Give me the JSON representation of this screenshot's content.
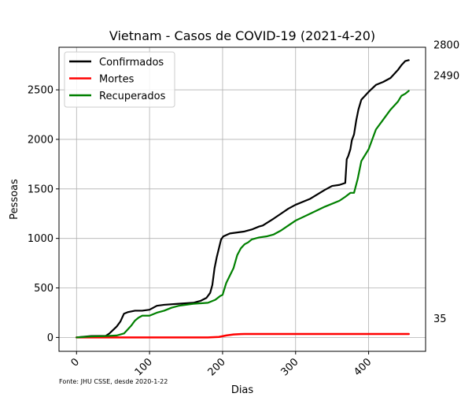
{
  "chart_data": {
    "type": "line",
    "title": "Vietnam - Casos de COVID-19 (2021-4-20)",
    "xlabel": "Dias",
    "ylabel": "Pessoas",
    "xlim": [
      -24,
      478
    ],
    "ylim": [
      -140,
      2930
    ],
    "xticks": [
      0,
      100,
      200,
      300,
      400
    ],
    "yticks": [
      0,
      500,
      1000,
      1500,
      2000,
      2500
    ],
    "grid": true,
    "legend": "top-left",
    "source_note": "Fonte: JHU CSSE, desde 2020-1-22",
    "series": [
      {
        "name": "Confirmados",
        "color": "#000000",
        "end_label": "2800",
        "x": [
          0,
          20,
          40,
          45,
          50,
          55,
          60,
          65,
          70,
          80,
          90,
          100,
          110,
          120,
          140,
          160,
          170,
          178,
          183,
          186,
          189,
          192,
          195,
          198,
          201,
          204,
          207,
          210,
          215,
          220,
          230,
          240,
          250,
          255,
          270,
          280,
          290,
          300,
          320,
          340,
          350,
          360,
          368,
          370,
          372,
          375,
          377,
          380,
          383,
          386,
          390,
          395,
          400,
          410,
          420,
          430,
          440,
          445,
          450,
          455
        ],
        "y": [
          0,
          14,
          16,
          40,
          75,
          110,
          160,
          240,
          255,
          270,
          270,
          280,
          320,
          330,
          340,
          350,
          370,
          400,
          450,
          530,
          700,
          810,
          900,
          990,
          1020,
          1030,
          1040,
          1050,
          1055,
          1060,
          1070,
          1090,
          1120,
          1130,
          1200,
          1250,
          1300,
          1340,
          1400,
          1490,
          1530,
          1540,
          1560,
          1800,
          1830,
          1900,
          1990,
          2050,
          2190,
          2300,
          2400,
          2440,
          2480,
          2550,
          2580,
          2620,
          2700,
          2750,
          2790,
          2800
        ]
      },
      {
        "name": "Mortes",
        "color": "#ff0000",
        "end_label": "35",
        "x": [
          0,
          180,
          195,
          205,
          210,
          215,
          220,
          225,
          230,
          300,
          400,
          455
        ],
        "y": [
          0,
          0,
          5,
          20,
          25,
          30,
          32,
          34,
          35,
          35,
          35,
          35
        ],
        "line_width": 2.5
      },
      {
        "name": "Recuperados",
        "color": "#008000",
        "end_label": "2490",
        "x": [
          0,
          20,
          40,
          55,
          65,
          70,
          75,
          80,
          85,
          90,
          100,
          110,
          120,
          130,
          140,
          160,
          180,
          190,
          197,
          200,
          205,
          215,
          220,
          225,
          230,
          235,
          240,
          250,
          260,
          270,
          280,
          290,
          300,
          320,
          340,
          360,
          368,
          375,
          380,
          385,
          390,
          400,
          410,
          420,
          430,
          440,
          445,
          450,
          455
        ],
        "y": [
          0,
          10,
          14,
          20,
          40,
          80,
          120,
          170,
          200,
          220,
          220,
          250,
          270,
          300,
          320,
          340,
          350,
          380,
          420,
          430,
          550,
          700,
          830,
          900,
          940,
          960,
          990,
          1010,
          1020,
          1040,
          1080,
          1130,
          1180,
          1250,
          1320,
          1380,
          1420,
          1460,
          1460,
          1600,
          1780,
          1900,
          2100,
          2200,
          2300,
          2380,
          2440,
          2460,
          2490
        ]
      }
    ]
  }
}
